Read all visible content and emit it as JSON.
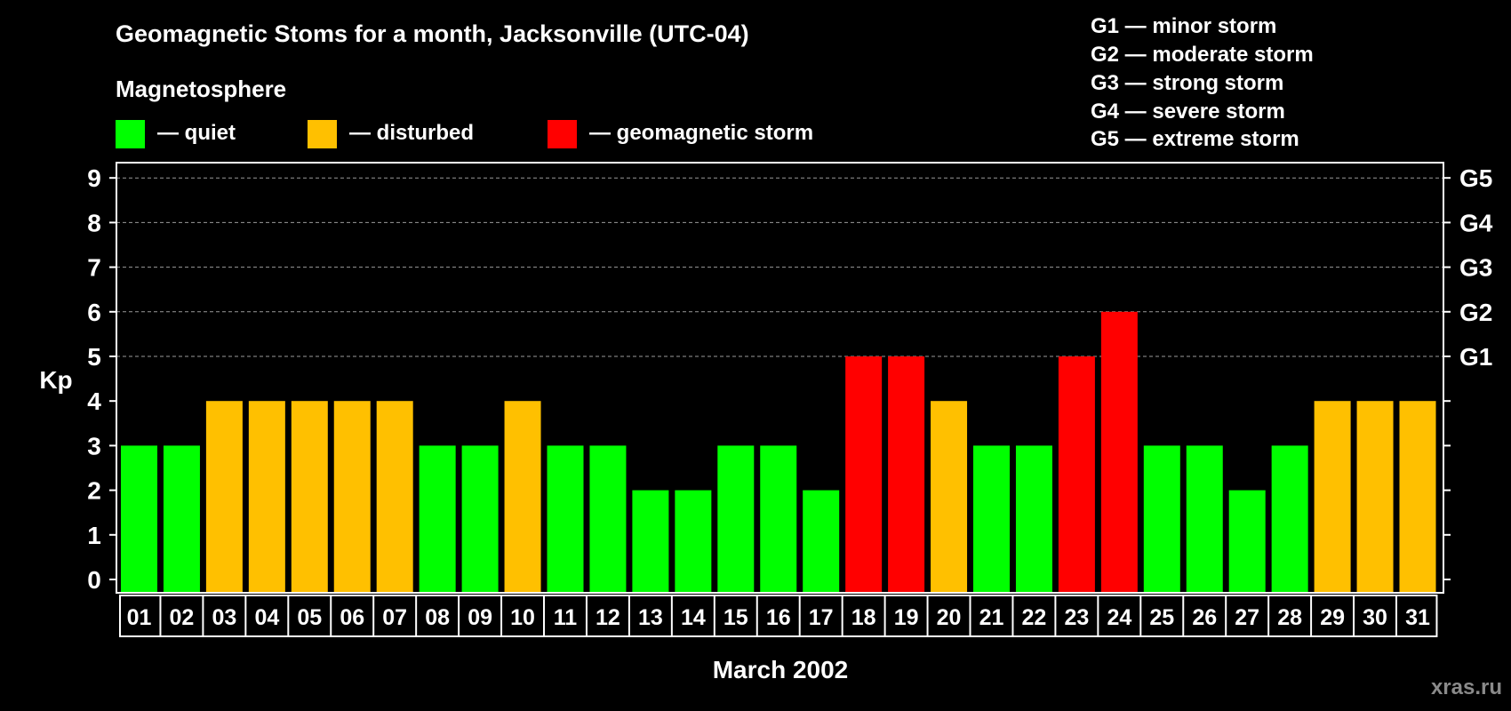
{
  "chart_data": {
    "type": "bar",
    "title": "Geomagnetic Stoms for a month, Jacksonville (UTC-04)",
    "legend_heading": "Magnetosphere",
    "legend": [
      {
        "label": "— quiet",
        "color": "#00ff00"
      },
      {
        "label": "— disturbed",
        "color": "#ffc000"
      },
      {
        "label": "— geomagnetic storm",
        "color": "#ff0000"
      }
    ],
    "storm_scale": [
      "G1 — minor storm",
      "G2 — moderate storm",
      "G3 — strong storm",
      "G4 — severe storm",
      "G5 — extreme storm"
    ],
    "ylabel": "Kp",
    "xlabel": "March 2002",
    "ylim": [
      0,
      9
    ],
    "y_ticks": [
      0,
      1,
      2,
      3,
      4,
      5,
      6,
      7,
      8,
      9
    ],
    "g_levels": [
      {
        "label": "G1",
        "kp": 5
      },
      {
        "label": "G2",
        "kp": 6
      },
      {
        "label": "G3",
        "kp": 7
      },
      {
        "label": "G4",
        "kp": 8
      },
      {
        "label": "G5",
        "kp": 9
      }
    ],
    "grid": "dashed at Kp 5-9",
    "categories": [
      "01",
      "02",
      "03",
      "04",
      "05",
      "06",
      "07",
      "08",
      "09",
      "10",
      "11",
      "12",
      "13",
      "14",
      "15",
      "16",
      "17",
      "18",
      "19",
      "20",
      "21",
      "22",
      "23",
      "24",
      "25",
      "26",
      "27",
      "28",
      "29",
      "30",
      "31"
    ],
    "values": [
      3,
      3,
      4,
      4,
      4,
      4,
      4,
      3,
      3,
      4,
      3,
      3,
      2,
      2,
      3,
      3,
      2,
      5,
      5,
      4,
      3,
      3,
      5,
      6,
      3,
      3,
      2,
      3,
      4,
      4,
      4
    ],
    "colors": {
      "quiet": "#00ff00",
      "disturbed": "#ffc000",
      "storm": "#ff0000"
    },
    "watermark": "xras.ru"
  }
}
